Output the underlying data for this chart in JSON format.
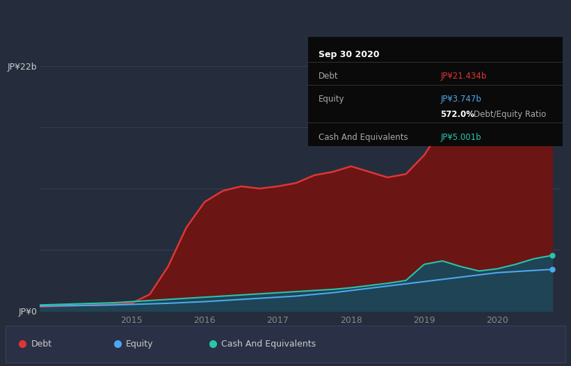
{
  "background_color": "#252d3d",
  "plot_bg_color": "#252d3d",
  "ylabel_top": "JP¥22b",
  "ylabel_bottom": "JP¥0",
  "debt_color": "#e03535",
  "equity_color": "#4da8f0",
  "cash_color": "#26c6aa",
  "debt_fill_color": "#6b1515",
  "cash_fill_color": "#1e4455",
  "tooltip": {
    "title": "Sep 30 2020",
    "debt_label": "Debt",
    "debt_value": "JP¥21.434b",
    "equity_label": "Equity",
    "equity_value": "JP¥3.747b",
    "ratio_value": "572.0%",
    "ratio_label": "Debt/Equity Ratio",
    "cash_label": "Cash And Equivalents",
    "cash_value": "JP¥5.001b"
  },
  "legend_items": [
    "Debt",
    "Equity",
    "Cash And Equivalents"
  ],
  "legend_colors": [
    "#e03535",
    "#4da8f0",
    "#26c6aa"
  ],
  "time": [
    2013.75,
    2014.0,
    2014.25,
    2014.5,
    2014.75,
    2015.0,
    2015.25,
    2015.5,
    2015.75,
    2016.0,
    2016.25,
    2016.5,
    2016.75,
    2017.0,
    2017.25,
    2017.5,
    2017.75,
    2018.0,
    2018.25,
    2018.5,
    2018.75,
    2019.0,
    2019.25,
    2019.5,
    2019.75,
    2020.0,
    2020.25,
    2020.5,
    2020.75
  ],
  "debt": [
    0.4,
    0.45,
    0.5,
    0.55,
    0.6,
    0.7,
    1.5,
    4.0,
    7.5,
    9.8,
    10.8,
    11.2,
    11.0,
    11.2,
    11.5,
    12.2,
    12.5,
    13.0,
    12.5,
    12.0,
    12.3,
    14.0,
    16.5,
    18.5,
    19.5,
    19.8,
    20.5,
    22.3,
    21.434
  ],
  "equity": [
    0.45,
    0.48,
    0.5,
    0.52,
    0.55,
    0.6,
    0.65,
    0.7,
    0.78,
    0.85,
    0.95,
    1.05,
    1.15,
    1.25,
    1.35,
    1.5,
    1.65,
    1.85,
    2.05,
    2.25,
    2.45,
    2.65,
    2.85,
    3.05,
    3.25,
    3.45,
    3.55,
    3.65,
    3.747
  ],
  "cash": [
    0.55,
    0.6,
    0.65,
    0.7,
    0.75,
    0.85,
    0.95,
    1.05,
    1.15,
    1.25,
    1.35,
    1.45,
    1.55,
    1.65,
    1.75,
    1.85,
    1.95,
    2.1,
    2.3,
    2.5,
    2.75,
    4.2,
    4.5,
    4.0,
    3.6,
    3.8,
    4.2,
    4.7,
    5.001
  ],
  "ylim": [
    0,
    23
  ],
  "xlim": [
    2013.75,
    2020.85
  ]
}
